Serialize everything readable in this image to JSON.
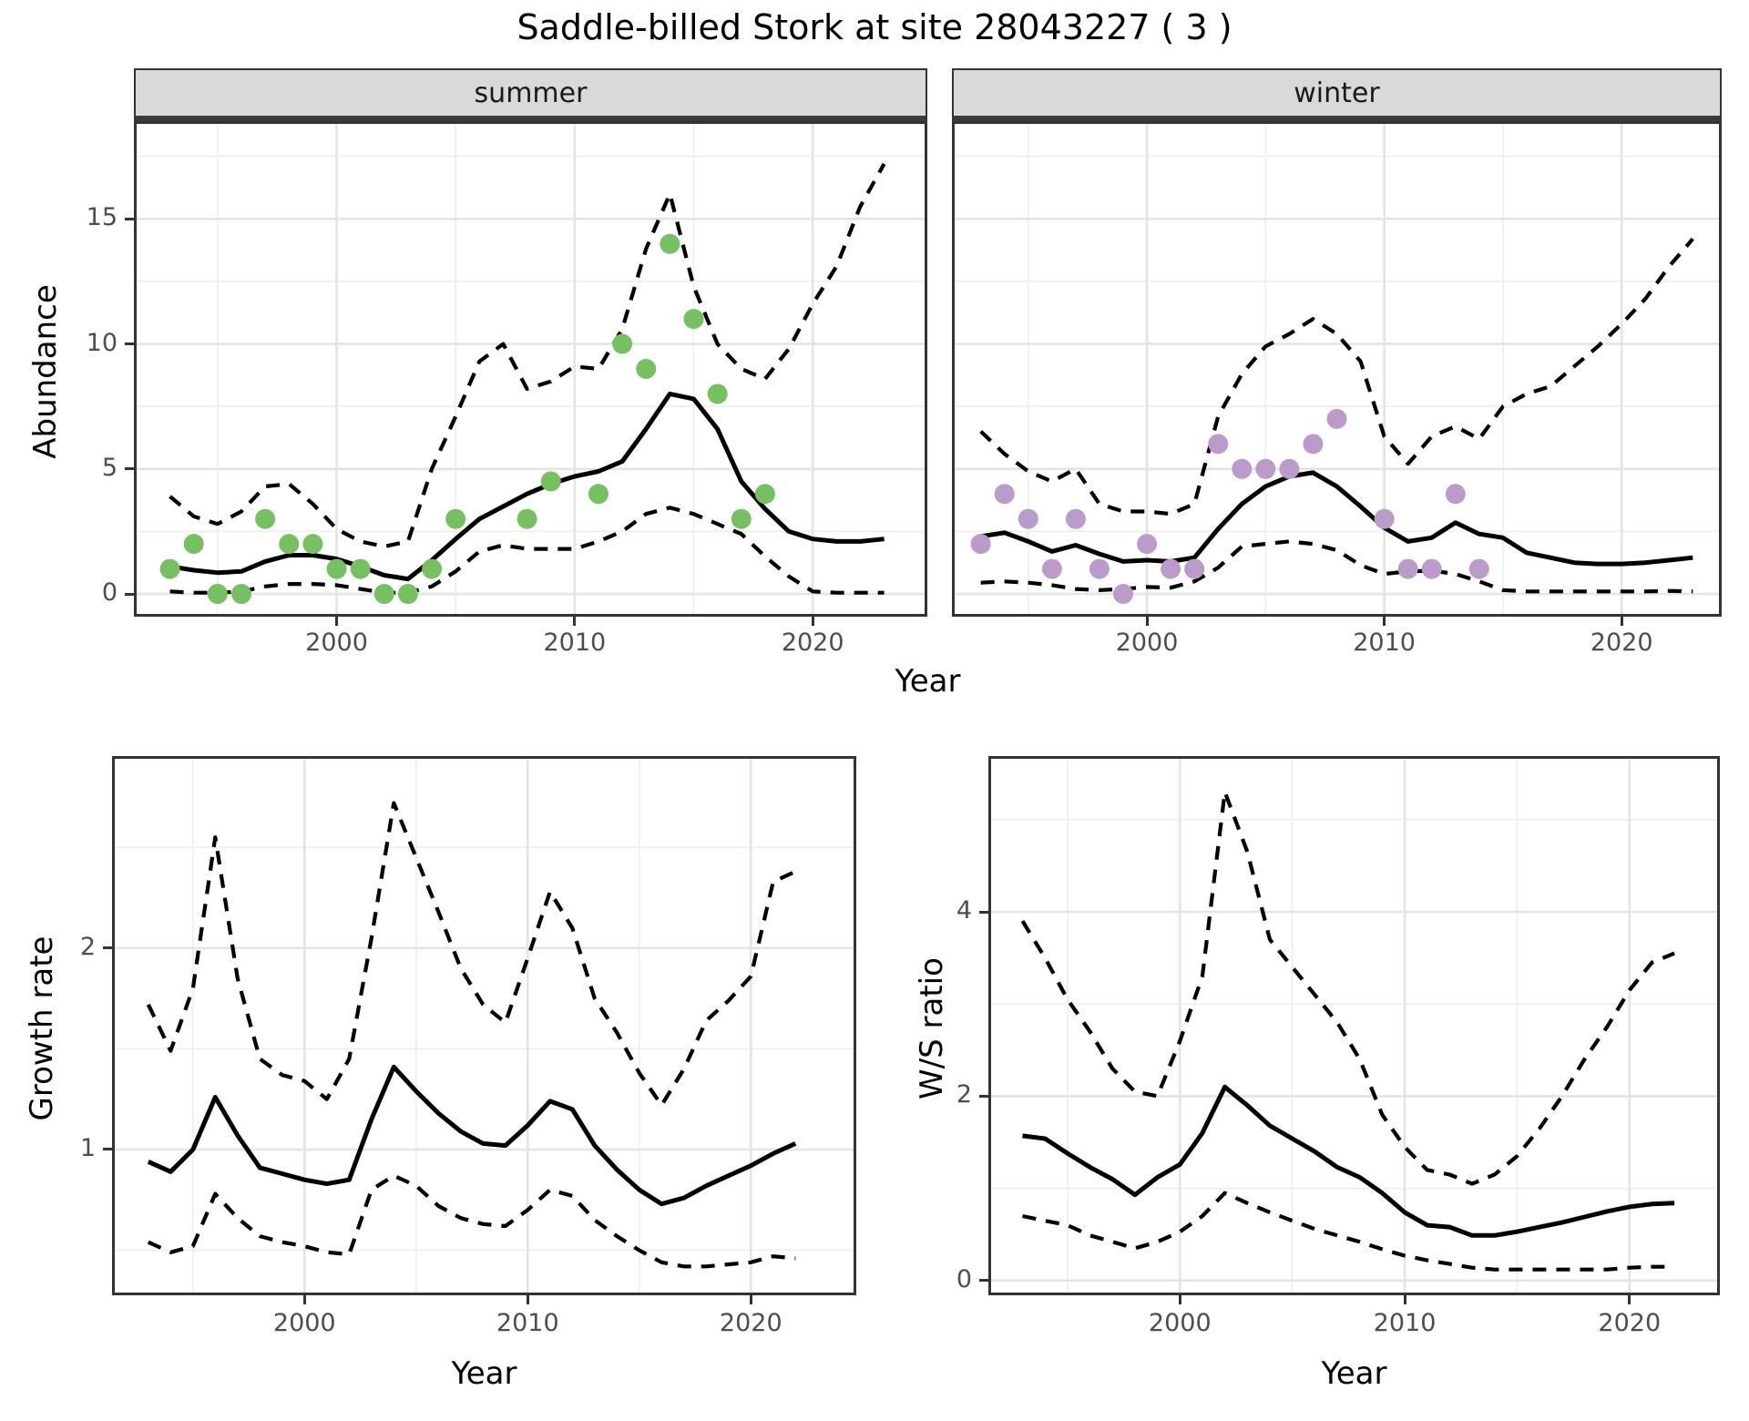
{
  "title": "Saddle-billed Stork at site 28043227 ( 3 )",
  "top_row": {
    "ylabel": "Abundance",
    "xlabel": "Year",
    "facets": [
      "summer",
      "winter"
    ]
  },
  "bottom_row": {
    "left": {
      "ylabel": "Growth rate",
      "xlabel": "Year"
    },
    "right": {
      "ylabel": "W/S ratio",
      "xlabel": "Year"
    }
  },
  "colors": {
    "summer_point": "#76C063",
    "winter_point": "#BA9BC9",
    "mean_line": "#000000",
    "ci_line": "#000000",
    "grid_major": "#E4E4E4",
    "grid_minor": "#F0F0F0",
    "strip_bg": "#D9D9D9",
    "axis_text": "#4D4D4D",
    "panel_border": "#333333"
  },
  "chart_data": [
    {
      "id": "abundance_summer",
      "type": "line",
      "facet": "summer",
      "ylabel": "Abundance",
      "xlabel": "Year",
      "x_ticks": [
        2000,
        2010,
        2020
      ],
      "x_minor": [
        1995,
        2005,
        2015
      ],
      "y_ticks": [
        0,
        5,
        10,
        15
      ],
      "y_minor": [
        2.5,
        7.5,
        12.5,
        17.5
      ],
      "xlim": [
        1991.6,
        2024.7
      ],
      "ylim": [
        -0.8,
        18.8
      ],
      "grid": true,
      "legend": "none",
      "years": [
        1993,
        1994,
        1995,
        1996,
        1997,
        1998,
        1999,
        2000,
        2001,
        2002,
        2003,
        2004,
        2005,
        2006,
        2007,
        2008,
        2009,
        2010,
        2011,
        2012,
        2013,
        2014,
        2015,
        2016,
        2017,
        2018,
        2019,
        2020,
        2021,
        2022,
        2023
      ],
      "series": [
        {
          "name": "mean",
          "style": "solid",
          "values": [
            1.1,
            0.95,
            0.85,
            0.9,
            1.3,
            1.55,
            1.55,
            1.4,
            1.1,
            0.75,
            0.6,
            1.35,
            2.2,
            3.0,
            3.5,
            4.0,
            4.4,
            4.7,
            4.9,
            5.3,
            6.6,
            8.0,
            7.8,
            6.6,
            4.5,
            3.4,
            2.5,
            2.2,
            2.1,
            2.1,
            2.2
          ]
        },
        {
          "name": "upper_ci",
          "style": "dashed",
          "values": [
            3.9,
            3.1,
            2.8,
            3.3,
            4.3,
            4.4,
            3.6,
            2.6,
            2.1,
            1.9,
            2.1,
            5.0,
            7.1,
            9.3,
            10.0,
            8.2,
            8.5,
            9.1,
            9.0,
            10.6,
            13.8,
            16.0,
            12.3,
            10.0,
            9.0,
            8.6,
            9.8,
            11.6,
            13.1,
            15.5,
            17.2
          ]
        },
        {
          "name": "lower_ci",
          "style": "dashed",
          "values": [
            0.1,
            0.05,
            0.05,
            0.1,
            0.3,
            0.4,
            0.4,
            0.35,
            0.2,
            0.05,
            0.05,
            0.3,
            0.9,
            1.7,
            1.95,
            1.8,
            1.8,
            1.8,
            2.1,
            2.5,
            3.2,
            3.45,
            3.2,
            2.8,
            2.4,
            1.5,
            0.7,
            0.1,
            0.05,
            0.05,
            0.05
          ]
        }
      ],
      "points": {
        "color": "#76C063",
        "years": [
          1993,
          1994,
          1995,
          1996,
          1997,
          1998,
          1999,
          2000,
          2001,
          2002,
          2003,
          2004,
          2005,
          2008,
          2009,
          2011,
          2012,
          2013,
          2014,
          2015,
          2016,
          2017,
          2018
        ],
        "values": [
          1,
          2,
          0,
          0,
          3,
          2,
          2,
          1,
          1,
          0,
          0,
          1,
          3,
          3,
          4.5,
          4,
          10,
          9,
          14,
          11,
          8,
          3,
          4
        ]
      }
    },
    {
      "id": "abundance_winter",
      "type": "line",
      "facet": "winter",
      "ylabel": "Abundance",
      "xlabel": "Year",
      "x_ticks": [
        2000,
        2010,
        2020
      ],
      "x_minor": [
        1995,
        2005,
        2015
      ],
      "y_ticks": [
        0,
        5,
        10,
        15
      ],
      "y_minor": [
        2.5,
        7.5,
        12.5,
        17.5
      ],
      "xlim": [
        1991.9,
        2024.1
      ],
      "ylim": [
        -0.8,
        18.8
      ],
      "grid": true,
      "legend": "none",
      "years": [
        1993,
        1994,
        1995,
        1996,
        1997,
        1998,
        1999,
        2000,
        2001,
        2002,
        2003,
        2004,
        2005,
        2006,
        2007,
        2008,
        2009,
        2010,
        2011,
        2012,
        2013,
        2014,
        2015,
        2016,
        2017,
        2018,
        2019,
        2020,
        2021,
        2022,
        2023
      ],
      "series": [
        {
          "name": "mean",
          "style": "solid",
          "values": [
            2.3,
            2.45,
            2.1,
            1.7,
            1.95,
            1.6,
            1.3,
            1.35,
            1.3,
            1.45,
            2.6,
            3.6,
            4.3,
            4.7,
            4.85,
            4.3,
            3.5,
            2.65,
            2.1,
            2.25,
            2.85,
            2.4,
            2.25,
            1.65,
            1.45,
            1.25,
            1.2,
            1.2,
            1.25,
            1.35,
            1.45
          ]
        },
        {
          "name": "upper_ci",
          "style": "dashed",
          "values": [
            6.5,
            5.6,
            4.9,
            4.5,
            5.0,
            3.6,
            3.3,
            3.3,
            3.2,
            3.6,
            7.1,
            8.8,
            9.9,
            10.4,
            11.0,
            10.4,
            9.3,
            6.3,
            5.2,
            6.3,
            6.7,
            6.2,
            7.5,
            8.0,
            8.3,
            9.1,
            9.9,
            10.8,
            11.8,
            13.1,
            14.2
          ]
        },
        {
          "name": "lower_ci",
          "style": "dashed",
          "values": [
            0.45,
            0.5,
            0.45,
            0.35,
            0.2,
            0.15,
            0.2,
            0.28,
            0.25,
            0.5,
            1.05,
            1.9,
            2.0,
            2.1,
            2.0,
            1.75,
            1.15,
            0.8,
            0.9,
            0.93,
            0.8,
            0.5,
            0.15,
            0.1,
            0.1,
            0.1,
            0.1,
            0.1,
            0.1,
            0.12,
            0.1
          ]
        }
      ],
      "points": {
        "color": "#BA9BC9",
        "years": [
          1993,
          1994,
          1995,
          1996,
          1997,
          1998,
          1999,
          2000,
          2001,
          2002,
          2003,
          2004,
          2005,
          2006,
          2007,
          2008,
          2010,
          2011,
          2012,
          2013,
          2014
        ],
        "values": [
          2,
          4,
          3,
          1,
          3,
          1,
          0,
          2,
          1,
          1,
          6,
          5,
          5,
          5,
          6,
          7,
          3,
          1,
          1,
          4,
          1
        ]
      }
    },
    {
      "id": "growth_rate",
      "type": "line",
      "ylabel": "Growth rate",
      "xlabel": "Year",
      "x_ticks": [
        2000,
        2010,
        2020
      ],
      "x_minor": [
        1995,
        2005,
        2015
      ],
      "y_ticks": [
        1,
        2
      ],
      "y_minor": [
        0.5,
        1.5,
        2.5
      ],
      "xlim": [
        1991.5,
        2024.6
      ],
      "ylim": [
        0.29,
        2.94
      ],
      "grid": true,
      "legend": "none",
      "years": [
        1993,
        1994,
        1995,
        1996,
        1997,
        1998,
        1999,
        2000,
        2001,
        2002,
        2003,
        2004,
        2005,
        2006,
        2007,
        2008,
        2009,
        2010,
        2011,
        2012,
        2013,
        2014,
        2015,
        2016,
        2017,
        2018,
        2019,
        2020,
        2021,
        2022
      ],
      "series": [
        {
          "name": "mean",
          "style": "solid",
          "values": [
            0.94,
            0.89,
            1.0,
            1.26,
            1.07,
            0.91,
            0.88,
            0.85,
            0.83,
            0.85,
            1.15,
            1.41,
            1.29,
            1.18,
            1.09,
            1.03,
            1.02,
            1.12,
            1.24,
            1.2,
            1.02,
            0.9,
            0.8,
            0.73,
            0.76,
            0.82,
            0.87,
            0.92,
            0.98,
            1.03
          ]
        },
        {
          "name": "upper_ci",
          "style": "dashed",
          "values": [
            1.72,
            1.49,
            1.8,
            2.55,
            1.85,
            1.45,
            1.37,
            1.34,
            1.25,
            1.45,
            2.05,
            2.72,
            2.45,
            2.18,
            1.9,
            1.72,
            1.63,
            1.95,
            2.28,
            2.1,
            1.75,
            1.58,
            1.38,
            1.22,
            1.4,
            1.64,
            1.74,
            1.86,
            2.33,
            2.38
          ]
        },
        {
          "name": "lower_ci",
          "style": "dashed",
          "values": [
            0.54,
            0.49,
            0.52,
            0.78,
            0.66,
            0.57,
            0.54,
            0.52,
            0.49,
            0.48,
            0.8,
            0.87,
            0.82,
            0.72,
            0.66,
            0.63,
            0.62,
            0.7,
            0.8,
            0.77,
            0.65,
            0.57,
            0.5,
            0.44,
            0.42,
            0.42,
            0.43,
            0.44,
            0.47,
            0.46
          ]
        }
      ],
      "points": null
    },
    {
      "id": "ws_ratio",
      "type": "line",
      "ylabel": "W/S ratio",
      "xlabel": "Year",
      "x_ticks": [
        2000,
        2010,
        2020
      ],
      "x_minor": [
        1995,
        2005,
        2015
      ],
      "y_ticks": [
        0,
        2,
        4
      ],
      "y_minor": [
        1,
        3,
        5
      ],
      "xlim": [
        1991.6,
        2023.9
      ],
      "ylim": [
        -0.13,
        5.66
      ],
      "grid": true,
      "legend": "none",
      "years": [
        1993,
        1994,
        1995,
        1996,
        1997,
        1998,
        1999,
        2000,
        2001,
        2002,
        2003,
        2004,
        2005,
        2006,
        2007,
        2008,
        2009,
        2010,
        2011,
        2012,
        2013,
        2014,
        2015,
        2016,
        2017,
        2018,
        2019,
        2020,
        2021,
        2022
      ],
      "series": [
        {
          "name": "mean",
          "style": "solid",
          "values": [
            1.57,
            1.54,
            1.38,
            1.23,
            1.1,
            0.93,
            1.12,
            1.26,
            1.6,
            2.1,
            1.9,
            1.68,
            1.54,
            1.4,
            1.23,
            1.12,
            0.95,
            0.74,
            0.6,
            0.58,
            0.49,
            0.49,
            0.53,
            0.58,
            0.63,
            0.69,
            0.75,
            0.8,
            0.83,
            0.84
          ]
        },
        {
          "name": "upper_ci",
          "style": "dashed",
          "values": [
            3.9,
            3.5,
            3.05,
            2.7,
            2.3,
            2.05,
            2.0,
            2.6,
            3.3,
            5.3,
            4.65,
            3.7,
            3.4,
            3.1,
            2.8,
            2.4,
            1.8,
            1.45,
            1.2,
            1.15,
            1.05,
            1.15,
            1.35,
            1.65,
            2.0,
            2.4,
            2.75,
            3.15,
            3.45,
            3.55
          ]
        },
        {
          "name": "lower_ci",
          "style": "dashed",
          "values": [
            0.7,
            0.65,
            0.6,
            0.49,
            0.42,
            0.35,
            0.42,
            0.53,
            0.7,
            0.95,
            0.84,
            0.74,
            0.65,
            0.56,
            0.49,
            0.42,
            0.34,
            0.27,
            0.22,
            0.18,
            0.14,
            0.12,
            0.12,
            0.12,
            0.12,
            0.12,
            0.12,
            0.14,
            0.15,
            0.15
          ]
        }
      ],
      "points": null
    }
  ]
}
